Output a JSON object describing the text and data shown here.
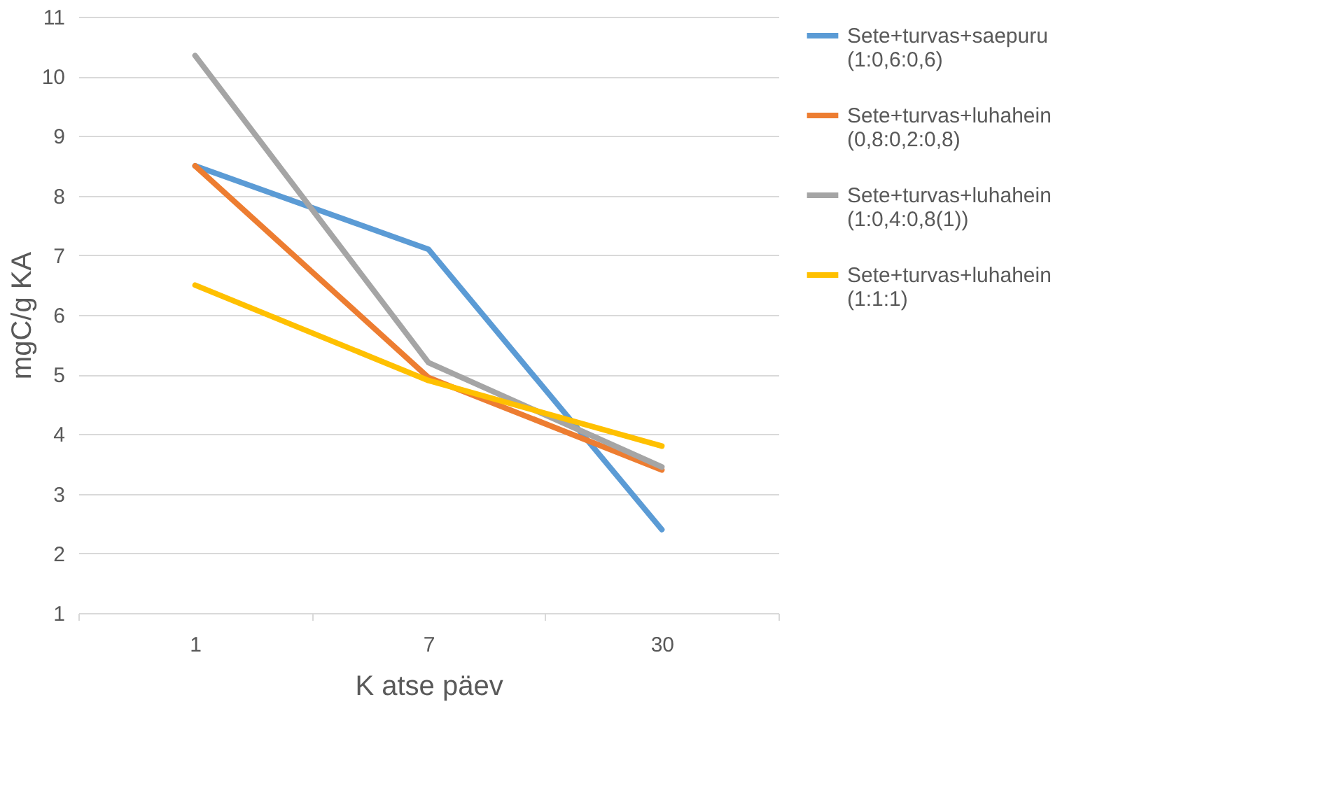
{
  "chart_data": {
    "type": "line",
    "xlabel": "K atse päev",
    "ylabel": "mgC/g KA",
    "categories": [
      "1",
      "7",
      "30"
    ],
    "series": [
      {
        "name": "Sete+turvas+saepuru (1:0,6:0,6)",
        "color": "#5b9bd5",
        "values": [
          8.5,
          7.1,
          2.4
        ]
      },
      {
        "name": "Sete+turvas+luhahein (0,8:0,2:0,8)",
        "color": "#ed7d31",
        "values": [
          8.5,
          4.95,
          3.4
        ]
      },
      {
        "name": "Sete+turvas+luhahein (1:0,4:0,8(1))",
        "color": "#a5a5a5",
        "values": [
          10.35,
          5.2,
          3.45
        ]
      },
      {
        "name": "Sete+turvas+luhahein (1:1:1)",
        "color": "#ffc000",
        "values": [
          6.5,
          4.9,
          3.8
        ]
      }
    ],
    "ylim": [
      1,
      11
    ],
    "yticks": [
      1,
      2,
      3,
      4,
      5,
      6,
      7,
      8,
      9,
      10,
      11
    ],
    "grid": "y",
    "legend": "right",
    "marker": "none",
    "line_style": "solid"
  }
}
